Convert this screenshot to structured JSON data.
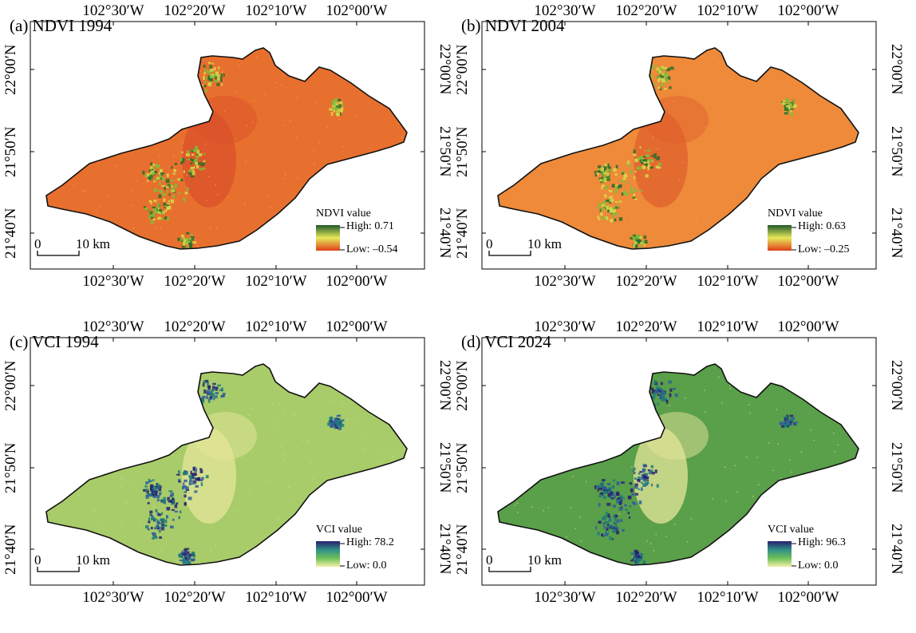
{
  "panels": [
    {
      "id": "a",
      "title": "(a) NDVI 1994",
      "legend_title": "NDVI value",
      "legend_high": "High: 0.71",
      "legend_low": "Low: –0.54",
      "palette": "ndvi",
      "base_color": "#e8702e",
      "gradient": [
        "#1e5a2a",
        "#e8e85a",
        "#e0401a"
      ]
    },
    {
      "id": "b",
      "title": "(b) NDVI 2004",
      "legend_title": "NDVI value",
      "legend_high": "High: 0.63",
      "legend_low": "Low: –0.25",
      "palette": "ndvi",
      "base_color": "#ee8a3a",
      "gradient": [
        "#1e5a2a",
        "#e8e85a",
        "#e0401a"
      ]
    },
    {
      "id": "c",
      "title": "(c) VCI 1994",
      "legend_title": "VCI value",
      "legend_high": "High: 78.2",
      "legend_low": "Low: 0.0",
      "palette": "vci",
      "base_color": "#a9cc6a",
      "gradient": [
        "#2a1f6e",
        "#2f8f86",
        "#6fbf5a",
        "#f2f0a8"
      ]
    },
    {
      "id": "d",
      "title": "(d) VCI 2024",
      "legend_title": "VCI value",
      "legend_high": "High: 96.3",
      "legend_low": "Low: 0.0",
      "palette": "vci",
      "base_color": "#5a9f4a",
      "gradient": [
        "#2a1f6e",
        "#2f8f86",
        "#6fbf5a",
        "#f2f0a8"
      ]
    }
  ],
  "lon_labels": [
    "102°30′W",
    "102°20′W",
    "102°10′W",
    "102°00′W"
  ],
  "lat_labels": [
    "22°00′N",
    "21°50′N",
    "21°40′N"
  ],
  "scale_bar": {
    "start": "0",
    "end": "10 km"
  }
}
